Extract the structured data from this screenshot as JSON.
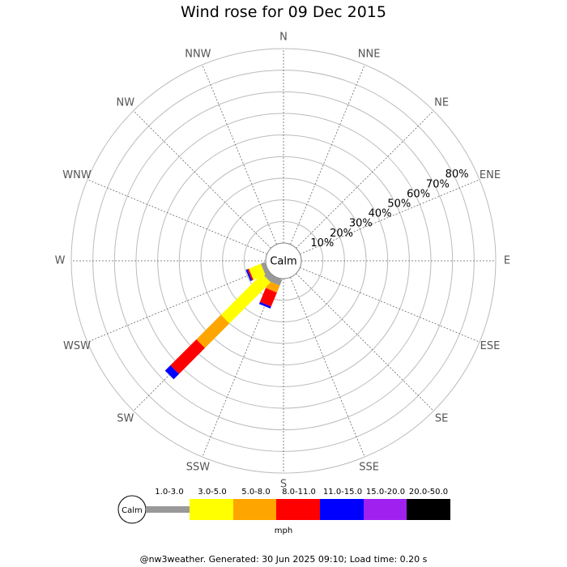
{
  "title": "Wind rose for 09 Dec 2015",
  "footer": "@nw3weather. Generated: 30 Jun 2025 09:10; Load time: 0.20 s",
  "chart_data": {
    "type": "wind-rose",
    "title": "Wind rose for 09 Dec 2015",
    "calm_label": "Calm",
    "directions": [
      "N",
      "NNE",
      "NE",
      "ENE",
      "E",
      "ESE",
      "SE",
      "SSE",
      "S",
      "SSW",
      "SW",
      "WSW",
      "W",
      "WNW",
      "NW",
      "NNW"
    ],
    "radial_ticks": [
      "10%",
      "20%",
      "30%",
      "40%",
      "50%",
      "60%",
      "70%",
      "80%"
    ],
    "radial_values": [
      10,
      20,
      30,
      40,
      50,
      60,
      70,
      80
    ],
    "rmax": 90,
    "grid": true,
    "unit": "mph",
    "speed_bins": [
      {
        "label": "",
        "color": "#999999"
      },
      {
        "label": "1.0-3.0",
        "color": "#ffff00"
      },
      {
        "label": "3.0-5.0",
        "color": "#ffa500"
      },
      {
        "label": "5.0-8.0",
        "color": "#ff0000"
      },
      {
        "label": "8.0-11.0",
        "color": "#0000ff"
      },
      {
        "label": "11.0-15.0",
        "color": "#a020f0"
      },
      {
        "label": "15.0-20.0",
        "color": "#000000"
      },
      {
        "label": "20.0-50.0",
        "color": ""
      }
    ],
    "legend_boxes": [
      {
        "color": "#999999",
        "label": ""
      },
      {
        "color": "#ffff00",
        "label": "1.0-3.0"
      },
      {
        "color": "#ffa500",
        "label": "3.0-5.0"
      },
      {
        "color": "#ff0000",
        "label": "5.0-8.0"
      },
      {
        "color": "#0000ff",
        "label": "8.0-11.0"
      },
      {
        "color": "#a020f0",
        "label": "11.0-15.0"
      },
      {
        "color": "#000000",
        "label": "15.0-20.0"
      },
      {
        "color": "",
        "label": "20.0-50.0"
      }
    ],
    "series": [
      {
        "direction": "SSW",
        "segments": [
          {
            "color": "#999999",
            "value": 3
          },
          {
            "color": "#ffa500",
            "value": 3.5
          },
          {
            "color": "#ff0000",
            "value": 7
          },
          {
            "color": "#0000ff",
            "value": 1
          }
        ]
      },
      {
        "direction": "SW",
        "segments": [
          {
            "color": "#999999",
            "value": 3
          },
          {
            "color": "#ffff00",
            "value": 27
          },
          {
            "color": "#ffa500",
            "value": 16
          },
          {
            "color": "#ff0000",
            "value": 17
          },
          {
            "color": "#0000ff",
            "value": 3.5
          }
        ]
      },
      {
        "direction": "WSW",
        "segments": [
          {
            "color": "#999999",
            "value": 2
          },
          {
            "color": "#ffff00",
            "value": 6
          },
          {
            "color": "#ff0000",
            "value": 0.7
          },
          {
            "color": "#0000ff",
            "value": 0.8
          }
        ]
      }
    ]
  }
}
